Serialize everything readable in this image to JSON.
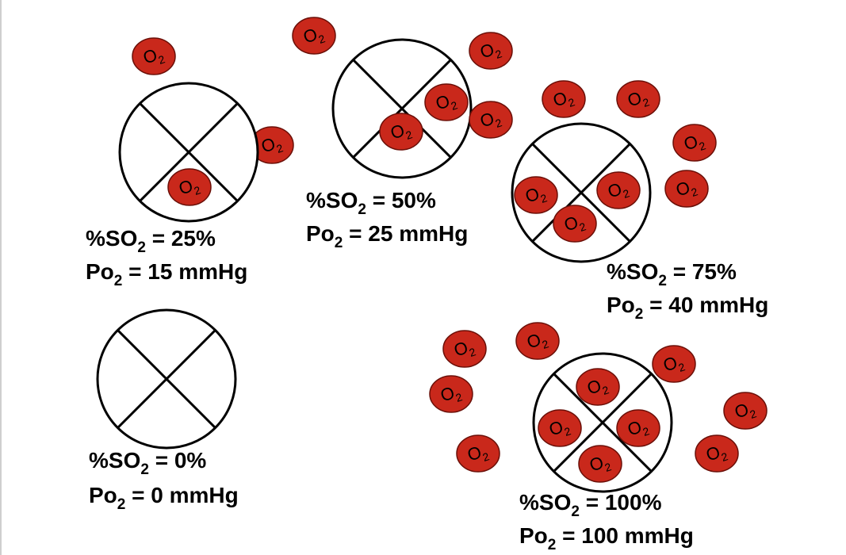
{
  "molecule": {
    "label": "O",
    "sub": "2",
    "fill": "#c9281b",
    "stroke": "#6a0f08"
  },
  "cells": [
    {
      "id": "cell-0",
      "so2_prefix": "%SO",
      "so2_sub": "2",
      "so2_value": " = 0%",
      "po2_prefix": "Po",
      "po2_sub": "2",
      "po2_value": " = 0 mmHg",
      "bound": 0
    },
    {
      "id": "cell-25",
      "so2_prefix": "%SO",
      "so2_sub": "2",
      "so2_value": " = 25%",
      "po2_prefix": "Po",
      "po2_sub": "2",
      "po2_value": " = 15 mmHg",
      "bound": 1
    },
    {
      "id": "cell-50",
      "so2_prefix": "%SO",
      "so2_sub": "2",
      "so2_value": " = 50%",
      "po2_prefix": "Po",
      "po2_sub": "2",
      "po2_value": " = 25 mmHg",
      "bound": 2
    },
    {
      "id": "cell-75",
      "so2_prefix": "%SO",
      "so2_sub": "2",
      "so2_value": " = 75%",
      "po2_prefix": "Po",
      "po2_sub": "2",
      "po2_value": " = 40 mmHg",
      "bound": 3
    },
    {
      "id": "cell-100",
      "so2_prefix": "%SO",
      "so2_sub": "2",
      "so2_value": " = 100%",
      "po2_prefix": "Po",
      "po2_sub": "2",
      "po2_value": " = 100 mmHg",
      "bound": 4
    }
  ]
}
